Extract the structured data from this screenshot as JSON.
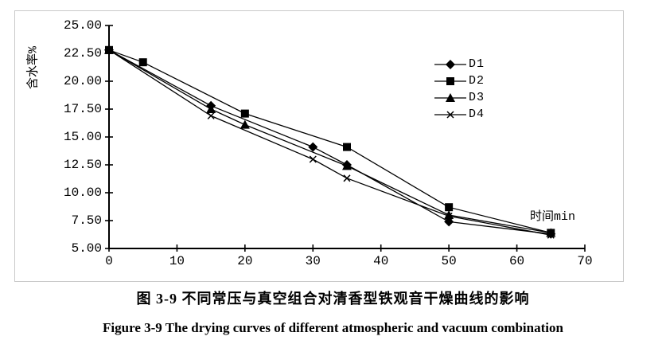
{
  "figure": {
    "caption_zh": "图 3-9  不同常压与真空组合对清香型铁观音干燥曲线的影响",
    "caption_en": "Figure 3-9 The drying curves of different atmospheric and vacuum combination"
  },
  "chart_data": {
    "type": "line",
    "title": "",
    "ylabel": "含水率%",
    "xlabel": "时间min",
    "xlim": [
      0,
      70
    ],
    "ylim": [
      5,
      25
    ],
    "x_ticks": [
      0,
      10,
      20,
      30,
      40,
      50,
      60,
      70
    ],
    "y_ticks": [
      "25.00",
      "22.50",
      "20.00",
      "17.50",
      "15.00",
      "12.50",
      "10.00",
      "7.50",
      "5.00"
    ],
    "grid": false,
    "legend_position": "inside-upper-right",
    "line_color": "#000000",
    "series": [
      {
        "name": "D1",
        "marker": "diamond",
        "points": [
          [
            0,
            22.8
          ],
          [
            15,
            17.8
          ],
          [
            30,
            14.1
          ],
          [
            35,
            12.5
          ],
          [
            50,
            7.4
          ],
          [
            65,
            6.3
          ]
        ]
      },
      {
        "name": "D2",
        "marker": "square",
        "points": [
          [
            0,
            22.8
          ],
          [
            5,
            21.7
          ],
          [
            20,
            17.1
          ],
          [
            35,
            14.1
          ],
          [
            50,
            8.7
          ],
          [
            65,
            6.4
          ]
        ]
      },
      {
        "name": "D3",
        "marker": "triangle",
        "points": [
          [
            0,
            22.8
          ],
          [
            15,
            17.5
          ],
          [
            20,
            16.1
          ],
          [
            35,
            12.4
          ],
          [
            50,
            8.0
          ],
          [
            65,
            6.4
          ]
        ]
      },
      {
        "name": "D4",
        "marker": "x",
        "points": [
          [
            0,
            22.8
          ],
          [
            15,
            16.9
          ],
          [
            30,
            13.0
          ],
          [
            35,
            11.3
          ],
          [
            50,
            7.9
          ],
          [
            65,
            6.2
          ]
        ]
      }
    ]
  }
}
